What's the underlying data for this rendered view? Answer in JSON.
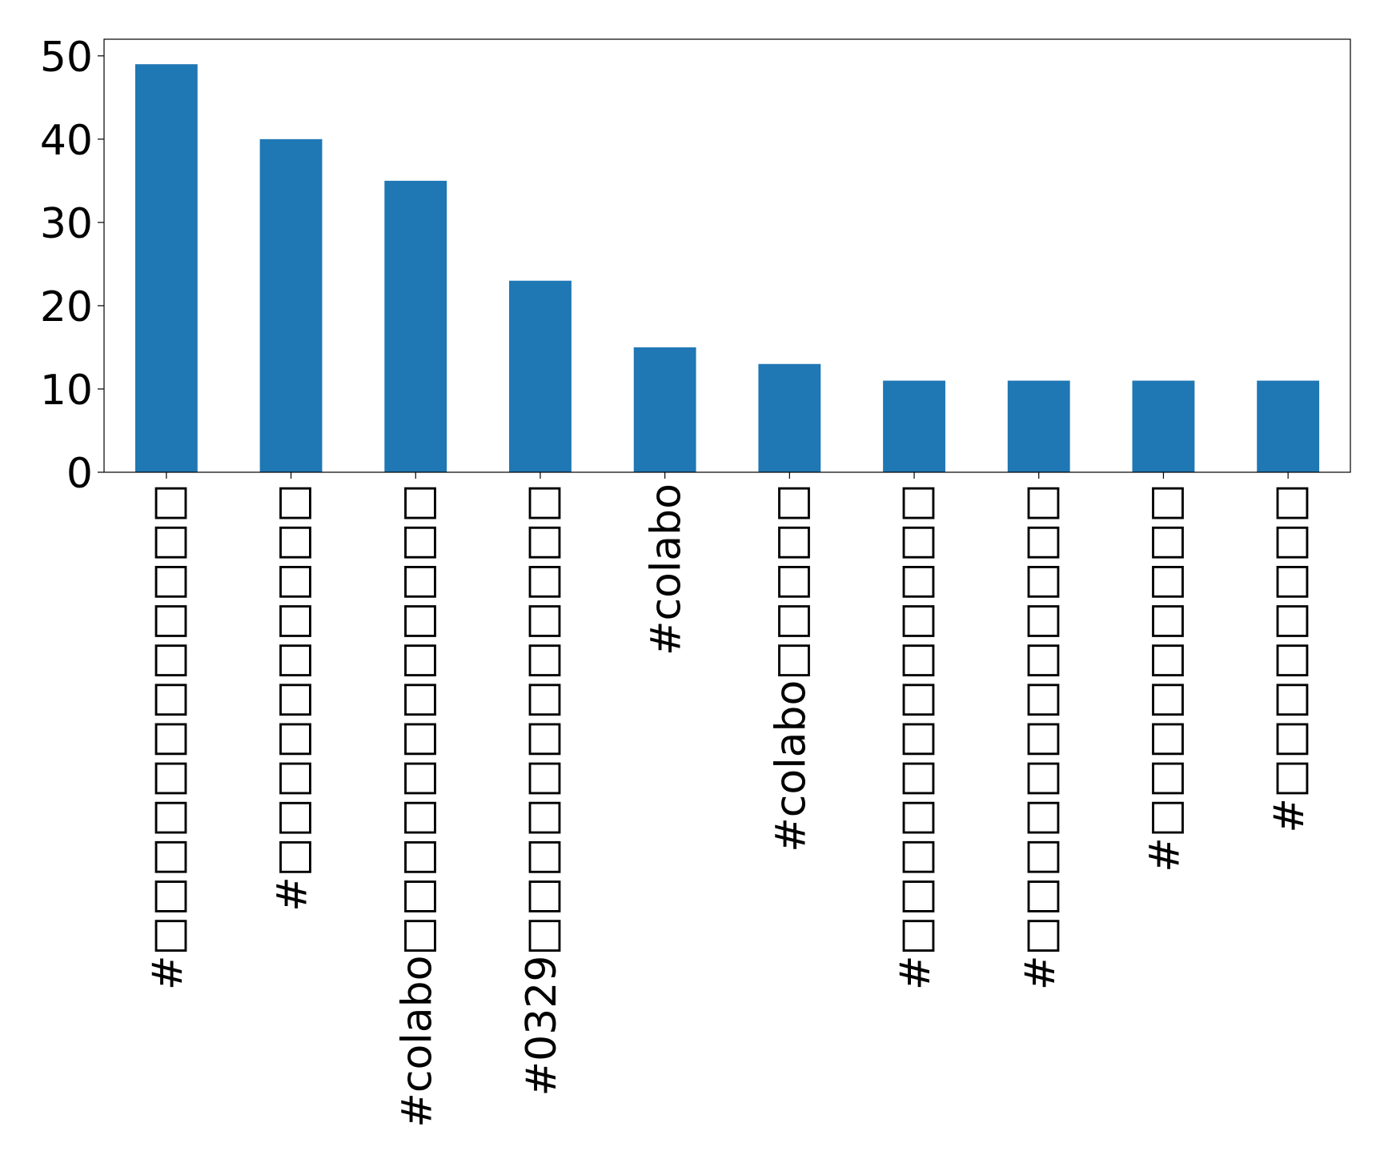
{
  "chart_data": {
    "type": "bar",
    "categories": [
      "#□□□□□□□□□□□□",
      "#□□□□□□□□□□",
      "#colabo□□□□□□□□□□□□",
      "#0329□□□□□□□□□□□□",
      "#colabo",
      "#colabo□□□□□",
      "#□□□□□□□□□□□□",
      "#□□□□□□□□□□□□",
      "#□□□□□□□□□",
      "#□□□□□□□□"
    ],
    "values": [
      49,
      40,
      35,
      23,
      15,
      13,
      11,
      11,
      11,
      11
    ],
    "color": "#1f77b4",
    "ylim": [
      0,
      52
    ],
    "yticks": [
      0,
      10,
      20,
      30,
      40,
      50
    ],
    "grid": false
  }
}
